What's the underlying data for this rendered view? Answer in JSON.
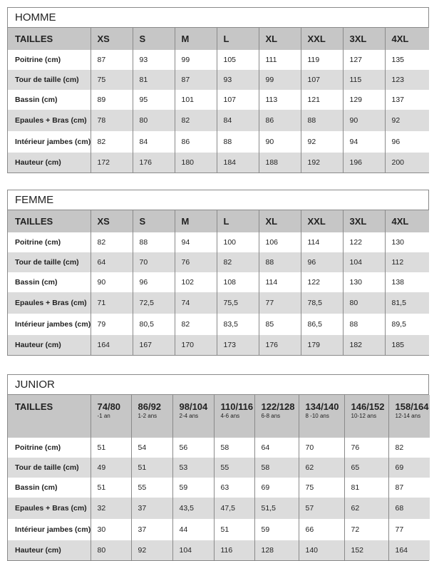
{
  "tables": [
    {
      "title": "HOMME",
      "header_label": "TAILLES",
      "sizes": [
        {
          "label": "XS"
        },
        {
          "label": "S"
        },
        {
          "label": "M"
        },
        {
          "label": "L"
        },
        {
          "label": "XL"
        },
        {
          "label": "XXL"
        },
        {
          "label": "3XL"
        },
        {
          "label": "4XL"
        }
      ],
      "rows": [
        {
          "label": "Poitrine (cm)",
          "values": [
            "87",
            "93",
            "99",
            "105",
            "111",
            "119",
            "127",
            "135"
          ]
        },
        {
          "label": "Tour de taille (cm)",
          "values": [
            "75",
            "81",
            "87",
            "93",
            "99",
            "107",
            "115",
            "123"
          ]
        },
        {
          "label": "Bassin (cm)",
          "values": [
            "89",
            "95",
            "101",
            "107",
            "113",
            "121",
            "129",
            "137"
          ]
        },
        {
          "label": "Epaules + Bras (cm)",
          "values": [
            "78",
            "80",
            "82",
            "84",
            "86",
            "88",
            "90",
            "92"
          ]
        },
        {
          "label": "Intérieur jambes (cm)",
          "values": [
            "82",
            "84",
            "86",
            "88",
            "90",
            "92",
            "94",
            "96"
          ]
        },
        {
          "label": "Hauteur (cm)",
          "values": [
            "172",
            "176",
            "180",
            "184",
            "188",
            "192",
            "196",
            "200"
          ]
        }
      ]
    },
    {
      "title": "FEMME",
      "header_label": "TAILLES",
      "sizes": [
        {
          "label": "XS"
        },
        {
          "label": "S"
        },
        {
          "label": "M"
        },
        {
          "label": "L"
        },
        {
          "label": "XL"
        },
        {
          "label": "XXL"
        },
        {
          "label": "3XL"
        },
        {
          "label": "4XL"
        }
      ],
      "rows": [
        {
          "label": "Poitrine (cm)",
          "values": [
            "82",
            "88",
            "94",
            "100",
            "106",
            "114",
            "122",
            "130"
          ]
        },
        {
          "label": "Tour de taille (cm)",
          "values": [
            "64",
            "70",
            "76",
            "82",
            "88",
            "96",
            "104",
            "112"
          ]
        },
        {
          "label": "Bassin (cm)",
          "values": [
            "90",
            "96",
            "102",
            "108",
            "114",
            "122",
            "130",
            "138"
          ]
        },
        {
          "label": "Epaules + Bras (cm)",
          "values": [
            "71",
            "72,5",
            "74",
            "75,5",
            "77",
            "78,5",
            "80",
            "81,5"
          ]
        },
        {
          "label": "Intérieur jambes (cm)",
          "values": [
            "79",
            "80,5",
            "82",
            "83,5",
            "85",
            "86,5",
            "88",
            "89,5"
          ]
        },
        {
          "label": "Hauteur (cm)",
          "values": [
            "164",
            "167",
            "170",
            "173",
            "176",
            "179",
            "182",
            "185"
          ]
        }
      ]
    },
    {
      "title": "JUNIOR",
      "header_label": "TAILLES",
      "sizes": [
        {
          "label": "74/80",
          "age": "-1 an"
        },
        {
          "label": "86/92",
          "age": "1-2 ans"
        },
        {
          "label": "98/104",
          "age": "2-4 ans"
        },
        {
          "label": "110/116",
          "age": "4-6 ans"
        },
        {
          "label": "122/128",
          "age": "6-8 ans"
        },
        {
          "label": "134/140",
          "age": "8 -10 ans"
        },
        {
          "label": "146/152",
          "age": "10-12 ans"
        },
        {
          "label": "158/164",
          "age": "12-14 ans"
        }
      ],
      "rows": [
        {
          "label": "Poitrine (cm)",
          "values": [
            "51",
            "54",
            "56",
            "58",
            "64",
            "70",
            "76",
            "82"
          ]
        },
        {
          "label": "Tour de taille (cm)",
          "values": [
            "49",
            "51",
            "53",
            "55",
            "58",
            "62",
            "65",
            "69"
          ]
        },
        {
          "label": "Bassin (cm)",
          "values": [
            "51",
            "55",
            "59",
            "63",
            "69",
            "75",
            "81",
            "87"
          ]
        },
        {
          "label": "Epaules + Bras (cm)",
          "values": [
            "32",
            "37",
            "43,5",
            "47,5",
            "51,5",
            "57",
            "62",
            "68"
          ]
        },
        {
          "label": "Intérieur jambes (cm)",
          "values": [
            "30",
            "37",
            "44",
            "51",
            "59",
            "66",
            "72",
            "77"
          ]
        },
        {
          "label": "Hauteur (cm)",
          "values": [
            "80",
            "92",
            "104",
            "116",
            "128",
            "140",
            "152",
            "164"
          ]
        }
      ]
    }
  ]
}
